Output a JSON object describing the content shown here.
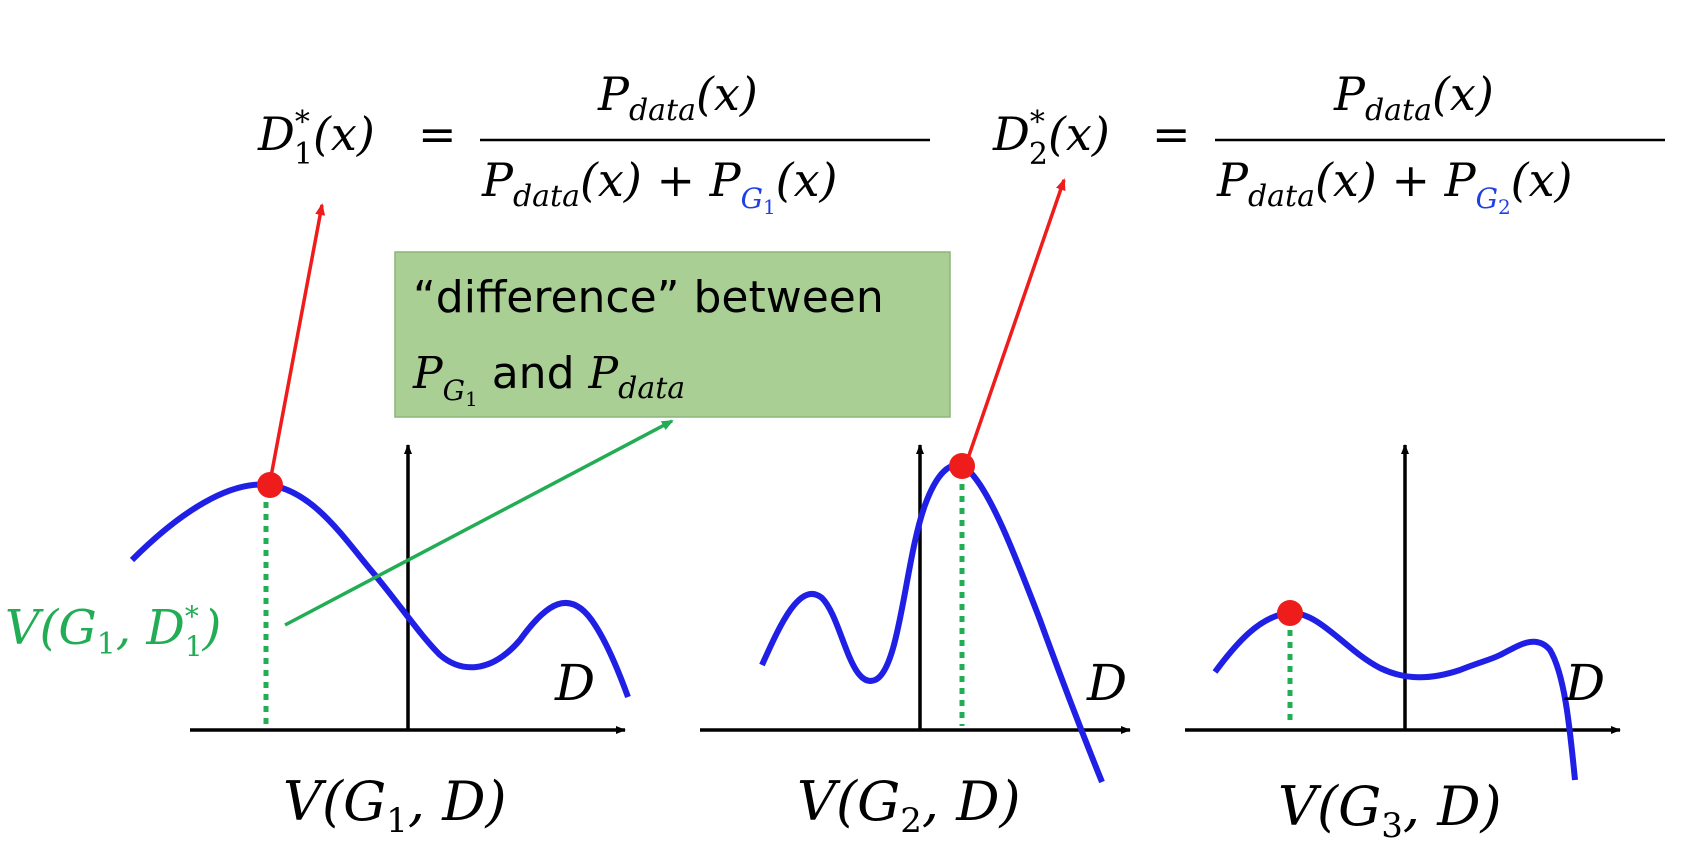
{
  "colors": {
    "curve": "#1f1fe6",
    "arrow_red": "#ef1c1c",
    "green": "#22ad55",
    "dot": "#ef1c1c",
    "subscript_blue": "#1f40e6",
    "box_fill": "#a9cf95",
    "box_stroke": "#8ab57a",
    "axis": "#000000"
  },
  "formula1": {
    "lhs_symbol": "D",
    "lhs_sup": "*",
    "lhs_sub": "1",
    "lhs_arg": "(x)",
    "equals": "=",
    "num_P": "P",
    "num_sub": "data",
    "num_arg": "(x)",
    "den_P1": "P",
    "den_sub1": "data",
    "den_arg1": "(x) + ",
    "den_P2": "P",
    "den_sub2": "G",
    "den_sub2_index": "1",
    "den_arg2": "(x)"
  },
  "formula2": {
    "lhs_symbol": "D",
    "lhs_sup": "*",
    "lhs_sub": "2",
    "lhs_arg": "(x)",
    "equals": "=",
    "num_P": "P",
    "num_sub": "data",
    "num_arg": "(x)",
    "den_P1": "P",
    "den_sub1": "data",
    "den_arg1": "(x) + ",
    "den_P2": "P",
    "den_sub2": "G",
    "den_sub2_index": "2",
    "den_arg2": "(x)"
  },
  "callout": {
    "line1": "“difference” between",
    "p": "P",
    "p_sub": "G",
    "p_sub_index": "1",
    "and": "and",
    "p2": "P",
    "p2_sub": "data"
  },
  "value_label": {
    "prefix": "V(",
    "g": "G",
    "g_sub": "1",
    "sep": ", ",
    "d": "D",
    "d_sup": "*",
    "d_sub": "1",
    "suffix": ")"
  },
  "plots": [
    {
      "axis_label": "D",
      "caption_prefix": "V(",
      "caption_g": "G",
      "caption_sub": "1",
      "caption_suffix": ", D)"
    },
    {
      "axis_label": "D",
      "caption_prefix": "V(",
      "caption_g": "G",
      "caption_sub": "2",
      "caption_suffix": ", D)"
    },
    {
      "axis_label": "D",
      "caption_prefix": "V(",
      "caption_g": "G",
      "caption_sub": "3",
      "caption_suffix": ", D)"
    }
  ]
}
